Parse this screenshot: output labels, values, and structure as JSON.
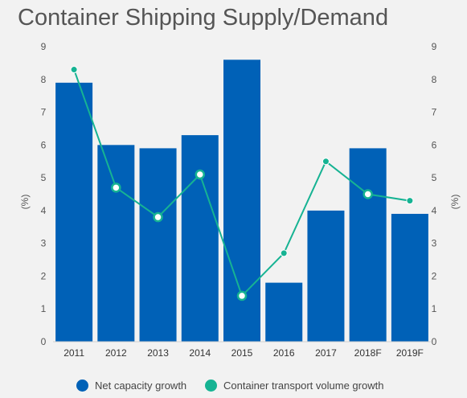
{
  "title": "Container Shipping Supply/Demand",
  "chart_data": {
    "type": "bar",
    "categories": [
      "2011",
      "2012",
      "2013",
      "2014",
      "2015",
      "2016",
      "2017",
      "2018F",
      "2019F"
    ],
    "series": [
      {
        "name": "Net capacity growth",
        "kind": "bar",
        "color": "#0061b7",
        "values": [
          7.9,
          6.0,
          5.9,
          6.3,
          8.6,
          1.8,
          4.0,
          5.9,
          3.9
        ]
      },
      {
        "name": "Container transport volume growth",
        "kind": "line",
        "color": "#16b393",
        "values": [
          8.3,
          4.7,
          3.8,
          5.1,
          1.4,
          2.7,
          5.5,
          4.5,
          4.3
        ],
        "hollow_markers": [
          false,
          true,
          true,
          true,
          true,
          false,
          false,
          true,
          false
        ]
      }
    ],
    "ylabel_left": "(%)",
    "ylabel_right": "(%)",
    "ylim": [
      0,
      9
    ],
    "yticks": [
      "0",
      "1",
      "2",
      "3",
      "4",
      "5",
      "6",
      "7",
      "8",
      "9"
    ],
    "grid": false,
    "legend_position": "bottom"
  }
}
